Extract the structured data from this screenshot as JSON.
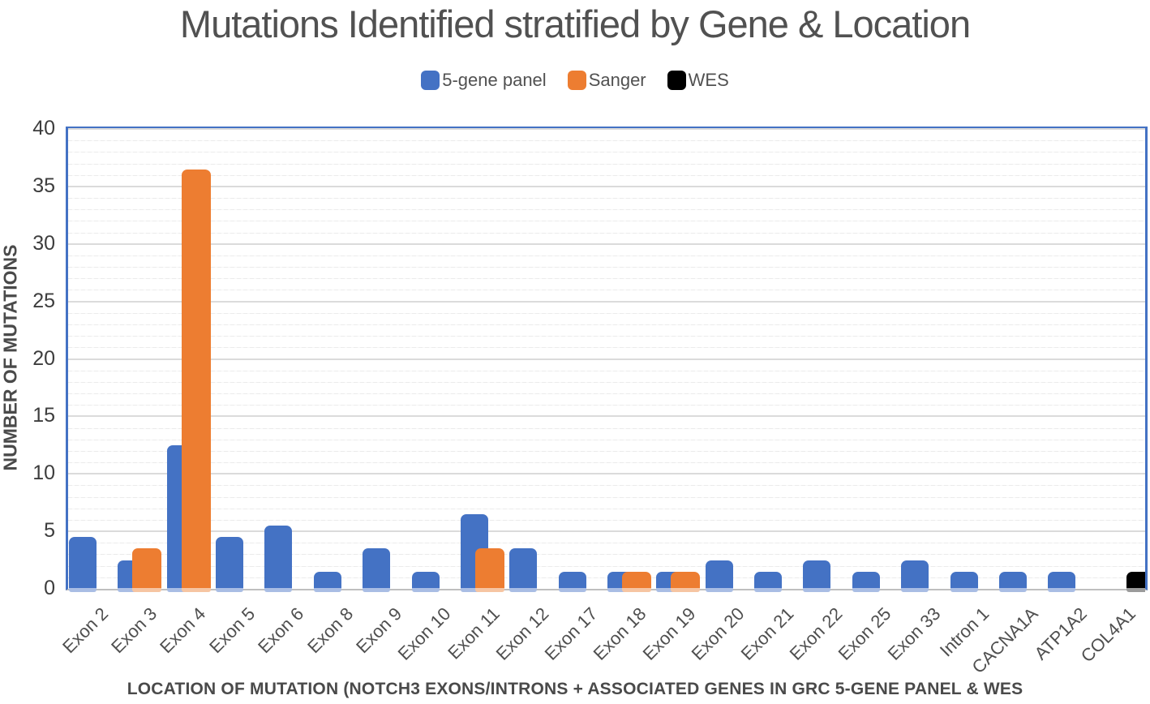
{
  "chart_data": {
    "type": "bar",
    "title": "Mutations Identified stratified by Gene & Location",
    "xlabel": "LOCATION OF MUTATION (NOTCH3 EXONS/INTRONS + ASSOCIATED GENES IN GRC 5-GENE PANEL & WES",
    "ylabel": "NUMBER OF MUTATIONS",
    "ylim": [
      0,
      40
    ],
    "y_major_step": 5,
    "y_minor_step": 1,
    "y_ticks": [
      0,
      5,
      10,
      15,
      20,
      25,
      30,
      35,
      40
    ],
    "grid": "horizontal major and minor gridlines on",
    "legend_position": "top-center",
    "categories": [
      "Exon 2",
      "Exon 3",
      "Exon 4",
      "Exon 5",
      "Exon 6",
      "Exon 8",
      "Exon 9",
      "Exon 10",
      "Exon 11",
      "Exon 12",
      "Exon 17",
      "Exon 18",
      "Exon 19",
      "Exon 20",
      "Exon 21",
      "Exon 22",
      "Exon 25",
      "Exon 33",
      "Intron 1",
      "CACNA1A",
      "ATP1A2",
      "COL4A1"
    ],
    "series": [
      {
        "name": "5-gene panel",
        "color": "#4472C4",
        "lip_color": "#A9BDE4",
        "values": [
          4.5,
          2.5,
          12.5,
          4.5,
          5.5,
          1.5,
          3.5,
          1.5,
          6.5,
          3.5,
          1.5,
          1.5,
          1.5,
          2.5,
          1.5,
          2.5,
          1.5,
          2.5,
          1.5,
          1.5,
          1.5,
          null
        ]
      },
      {
        "name": "Sanger",
        "color": "#ED7D31",
        "lip_color": "#F6C5A2",
        "values": [
          null,
          3.5,
          36.5,
          null,
          null,
          null,
          null,
          null,
          3.5,
          null,
          null,
          1.5,
          1.5,
          null,
          null,
          null,
          null,
          null,
          null,
          null,
          null,
          null
        ]
      },
      {
        "name": "WES",
        "color": "#000000",
        "lip_color": "#9B9B9B",
        "values": [
          null,
          null,
          null,
          null,
          null,
          null,
          null,
          null,
          null,
          null,
          null,
          null,
          null,
          null,
          null,
          null,
          null,
          null,
          null,
          null,
          null,
          1.5
        ]
      }
    ],
    "colors": {
      "plot_border": "#4472C4",
      "baseline": "#BFBFBF",
      "major_grid": "#DBDBDB",
      "minor_grid": "#EBEBEB",
      "text": "#515151"
    }
  }
}
